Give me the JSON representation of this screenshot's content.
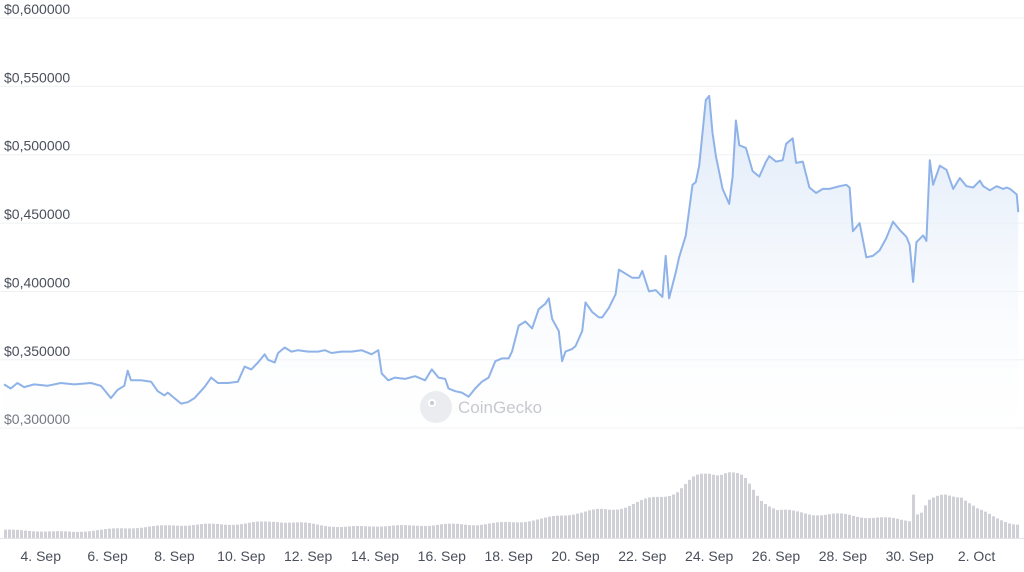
{
  "watermark": {
    "text": "CoinGecko"
  },
  "colors": {
    "line": "#8fb3e8",
    "area_top": "#dce8f8",
    "area_bottom": "#ffffff",
    "volume": "#cfd1d6",
    "grid": "#eef0f3",
    "axis_text": "#4a4f5c"
  },
  "chart_data": {
    "type": "area",
    "title": "",
    "xlabel": "",
    "ylabel": "",
    "ylim": [
      0.295,
      0.6
    ],
    "grid": true,
    "y_ticks": [
      {
        "value": 0.3,
        "label": "$0,300000"
      },
      {
        "value": 0.35,
        "label": "$0,350000"
      },
      {
        "value": 0.4,
        "label": "$0,400000"
      },
      {
        "value": 0.45,
        "label": "$0,450000"
      },
      {
        "value": 0.5,
        "label": "$0,500000"
      },
      {
        "value": 0.55,
        "label": "$0,550000"
      },
      {
        "value": 0.6,
        "label": "$0,600000"
      }
    ],
    "x_ticks": [
      {
        "day": 4,
        "label": "4. Sep"
      },
      {
        "day": 6,
        "label": "6. Sep"
      },
      {
        "day": 8,
        "label": "8. Sep"
      },
      {
        "day": 10,
        "label": "10. Sep"
      },
      {
        "day": 12,
        "label": "12. Sep"
      },
      {
        "day": 14,
        "label": "14. Sep"
      },
      {
        "day": 16,
        "label": "16. Sep"
      },
      {
        "day": 18,
        "label": "18. Sep"
      },
      {
        "day": 20,
        "label": "20. Sep"
      },
      {
        "day": 22,
        "label": "22. Sep"
      },
      {
        "day": 24,
        "label": "24. Sep"
      },
      {
        "day": 26,
        "label": "26. Sep"
      },
      {
        "day": 28,
        "label": "28. Sep"
      },
      {
        "day": 30,
        "label": "30. Sep"
      },
      {
        "day": 32,
        "label": "2. Oct"
      }
    ],
    "x_range": [
      2.9,
      33.3
    ],
    "series": [
      {
        "kind": "price",
        "points": [
          [
            2.9,
            0.332
          ],
          [
            3.1,
            0.329
          ],
          [
            3.3,
            0.333
          ],
          [
            3.5,
            0.33
          ],
          [
            3.8,
            0.332
          ],
          [
            4.2,
            0.331
          ],
          [
            4.6,
            0.333
          ],
          [
            5.0,
            0.332
          ],
          [
            5.5,
            0.333
          ],
          [
            5.8,
            0.331
          ],
          [
            6.0,
            0.325
          ],
          [
            6.1,
            0.322
          ],
          [
            6.3,
            0.328
          ],
          [
            6.5,
            0.331
          ],
          [
            6.6,
            0.342
          ],
          [
            6.7,
            0.335
          ],
          [
            7.0,
            0.335
          ],
          [
            7.3,
            0.334
          ],
          [
            7.5,
            0.327
          ],
          [
            7.7,
            0.324
          ],
          [
            7.8,
            0.326
          ],
          [
            8.0,
            0.322
          ],
          [
            8.2,
            0.318
          ],
          [
            8.4,
            0.319
          ],
          [
            8.6,
            0.322
          ],
          [
            8.9,
            0.33
          ],
          [
            9.1,
            0.337
          ],
          [
            9.3,
            0.333
          ],
          [
            9.6,
            0.333
          ],
          [
            9.9,
            0.334
          ],
          [
            10.1,
            0.345
          ],
          [
            10.3,
            0.343
          ],
          [
            10.5,
            0.348
          ],
          [
            10.7,
            0.354
          ],
          [
            10.8,
            0.35
          ],
          [
            11.0,
            0.348
          ],
          [
            11.1,
            0.355
          ],
          [
            11.3,
            0.359
          ],
          [
            11.5,
            0.356
          ],
          [
            11.7,
            0.357
          ],
          [
            12.0,
            0.356
          ],
          [
            12.3,
            0.356
          ],
          [
            12.5,
            0.357
          ],
          [
            12.7,
            0.355
          ],
          [
            13.0,
            0.356
          ],
          [
            13.3,
            0.356
          ],
          [
            13.6,
            0.357
          ],
          [
            13.9,
            0.354
          ],
          [
            14.1,
            0.357
          ],
          [
            14.2,
            0.34
          ],
          [
            14.4,
            0.335
          ],
          [
            14.6,
            0.337
          ],
          [
            14.9,
            0.336
          ],
          [
            15.2,
            0.338
          ],
          [
            15.5,
            0.335
          ],
          [
            15.7,
            0.343
          ],
          [
            15.9,
            0.337
          ],
          [
            16.1,
            0.336
          ],
          [
            16.2,
            0.329
          ],
          [
            16.4,
            0.327
          ],
          [
            16.6,
            0.326
          ],
          [
            16.8,
            0.323
          ],
          [
            17.0,
            0.329
          ],
          [
            17.2,
            0.334
          ],
          [
            17.4,
            0.337
          ],
          [
            17.6,
            0.349
          ],
          [
            17.8,
            0.351
          ],
          [
            18.0,
            0.351
          ],
          [
            18.1,
            0.356
          ],
          [
            18.3,
            0.375
          ],
          [
            18.5,
            0.378
          ],
          [
            18.7,
            0.373
          ],
          [
            18.9,
            0.387
          ],
          [
            19.1,
            0.391
          ],
          [
            19.2,
            0.395
          ],
          [
            19.3,
            0.38
          ],
          [
            19.5,
            0.371
          ],
          [
            19.6,
            0.349
          ],
          [
            19.7,
            0.356
          ],
          [
            19.9,
            0.358
          ],
          [
            20.0,
            0.36
          ],
          [
            20.2,
            0.371
          ],
          [
            20.3,
            0.392
          ],
          [
            20.5,
            0.385
          ],
          [
            20.7,
            0.381
          ],
          [
            20.8,
            0.381
          ],
          [
            21.0,
            0.388
          ],
          [
            21.2,
            0.398
          ],
          [
            21.3,
            0.416
          ],
          [
            21.5,
            0.413
          ],
          [
            21.7,
            0.41
          ],
          [
            21.9,
            0.41
          ],
          [
            22.0,
            0.415
          ],
          [
            22.2,
            0.4
          ],
          [
            22.4,
            0.401
          ],
          [
            22.6,
            0.396
          ],
          [
            22.7,
            0.426
          ],
          [
            22.8,
            0.395
          ],
          [
            23.0,
            0.414
          ],
          [
            23.1,
            0.425
          ],
          [
            23.3,
            0.441
          ],
          [
            23.5,
            0.478
          ],
          [
            23.6,
            0.48
          ],
          [
            23.7,
            0.492
          ],
          [
            23.9,
            0.54
          ],
          [
            24.0,
            0.543
          ],
          [
            24.1,
            0.516
          ],
          [
            24.2,
            0.499
          ],
          [
            24.4,
            0.475
          ],
          [
            24.6,
            0.464
          ],
          [
            24.7,
            0.484
          ],
          [
            24.8,
            0.525
          ],
          [
            24.9,
            0.507
          ],
          [
            25.1,
            0.505
          ],
          [
            25.3,
            0.488
          ],
          [
            25.5,
            0.484
          ],
          [
            25.7,
            0.495
          ],
          [
            25.8,
            0.499
          ],
          [
            26.0,
            0.495
          ],
          [
            26.2,
            0.496
          ],
          [
            26.3,
            0.508
          ],
          [
            26.5,
            0.512
          ],
          [
            26.6,
            0.494
          ],
          [
            26.8,
            0.495
          ],
          [
            27.0,
            0.476
          ],
          [
            27.2,
            0.472
          ],
          [
            27.4,
            0.475
          ],
          [
            27.6,
            0.475
          ],
          [
            27.9,
            0.477
          ],
          [
            28.1,
            0.478
          ],
          [
            28.2,
            0.476
          ],
          [
            28.3,
            0.444
          ],
          [
            28.5,
            0.45
          ],
          [
            28.7,
            0.425
          ],
          [
            28.9,
            0.426
          ],
          [
            29.1,
            0.43
          ],
          [
            29.3,
            0.439
          ],
          [
            29.5,
            0.451
          ],
          [
            29.7,
            0.445
          ],
          [
            29.9,
            0.44
          ],
          [
            30.0,
            0.434
          ],
          [
            30.1,
            0.407
          ],
          [
            30.2,
            0.436
          ],
          [
            30.4,
            0.441
          ],
          [
            30.5,
            0.437
          ],
          [
            30.6,
            0.496
          ],
          [
            30.7,
            0.478
          ],
          [
            30.9,
            0.492
          ],
          [
            31.1,
            0.489
          ],
          [
            31.3,
            0.475
          ],
          [
            31.5,
            0.483
          ],
          [
            31.7,
            0.477
          ],
          [
            31.9,
            0.476
          ],
          [
            32.1,
            0.481
          ],
          [
            32.2,
            0.477
          ],
          [
            32.4,
            0.474
          ],
          [
            32.6,
            0.477
          ],
          [
            32.8,
            0.475
          ],
          [
            32.9,
            0.476
          ],
          [
            33.0,
            0.475
          ],
          [
            33.2,
            0.471
          ],
          [
            33.25,
            0.458
          ]
        ]
      },
      {
        "kind": "volume",
        "relative_levels": [
          [
            2.9,
            0.12
          ],
          [
            4.0,
            0.1
          ],
          [
            5.0,
            0.09
          ],
          [
            6.0,
            0.13
          ],
          [
            7.0,
            0.16
          ],
          [
            8.0,
            0.19
          ],
          [
            9.0,
            0.2
          ],
          [
            10.0,
            0.21
          ],
          [
            11.0,
            0.25
          ],
          [
            12.0,
            0.21
          ],
          [
            13.0,
            0.16
          ],
          [
            14.0,
            0.18
          ],
          [
            15.0,
            0.18
          ],
          [
            16.0,
            0.2
          ],
          [
            17.0,
            0.2
          ],
          [
            18.0,
            0.23
          ],
          [
            19.0,
            0.28
          ],
          [
            20.0,
            0.38
          ],
          [
            21.0,
            0.42
          ],
          [
            22.0,
            0.54
          ],
          [
            23.0,
            0.7
          ],
          [
            23.5,
            0.86
          ],
          [
            24.0,
            0.98
          ],
          [
            24.5,
            1.0
          ],
          [
            25.0,
            0.86
          ],
          [
            25.5,
            0.58
          ],
          [
            26.0,
            0.42
          ],
          [
            26.5,
            0.38
          ],
          [
            27.0,
            0.36
          ],
          [
            28.0,
            0.34
          ],
          [
            29.0,
            0.3
          ],
          [
            29.5,
            0.28
          ],
          [
            30.0,
            0.26
          ],
          [
            30.1,
            0.88
          ],
          [
            30.2,
            0.3
          ],
          [
            30.5,
            0.54
          ],
          [
            31.0,
            0.62
          ],
          [
            31.5,
            0.64
          ],
          [
            32.0,
            0.42
          ],
          [
            32.5,
            0.3
          ],
          [
            33.0,
            0.22
          ],
          [
            33.25,
            0.2
          ]
        ]
      }
    ]
  }
}
